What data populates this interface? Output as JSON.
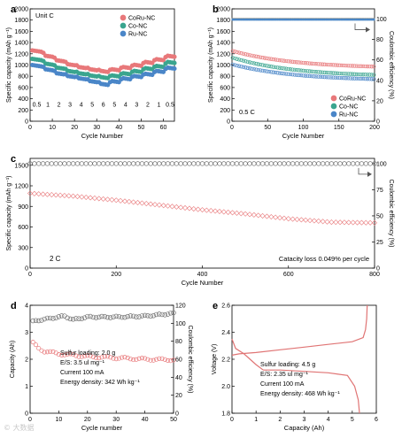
{
  "watermark": "© 大数据",
  "colors": {
    "corunc": "#e8787a",
    "conc": "#3aa58f",
    "runc": "#4a86c8",
    "gray": "#6e6e6e",
    "line": "#e07474"
  },
  "chart_data": [
    {
      "panel": "a",
      "type": "scatter",
      "xlabel": "Cycle Number",
      "ylabel": "Specific capacity (mAh g⁻¹)",
      "xlim": [
        0,
        65
      ],
      "ylim": [
        0,
        2000
      ],
      "xticks": [
        0,
        10,
        20,
        30,
        40,
        50,
        60
      ],
      "yticks": [
        0,
        200,
        400,
        600,
        800,
        1000,
        1200,
        1400,
        1600,
        1800,
        2000
      ],
      "annotation": "Unit C",
      "rate_labels": [
        "0.5",
        "1",
        "2",
        "3",
        "4",
        "5",
        "6",
        "5",
        "4",
        "3",
        "2",
        "1",
        "0.5"
      ],
      "legend_position": "top-right",
      "series": [
        {
          "name": "CoRu-NC",
          "color": "#e8787a",
          "segments": [
            1260,
            1170,
            1090,
            1020,
            970,
            930,
            900,
            930,
            970,
            1010,
            1060,
            1110,
            1170
          ]
        },
        {
          "name": "Co-NC",
          "color": "#3aa58f",
          "segments": [
            1110,
            1030,
            960,
            900,
            860,
            820,
            790,
            820,
            860,
            900,
            950,
            990,
            1060
          ]
        },
        {
          "name": "Ru-NC",
          "color": "#4a86c8",
          "segments": [
            1000,
            930,
            860,
            810,
            770,
            720,
            670,
            720,
            770,
            810,
            850,
            900,
            960
          ]
        }
      ]
    },
    {
      "panel": "b",
      "type": "scatter",
      "xlabel": "Cycle Number",
      "ylabel": "Specific capacity (mAh g⁻¹)",
      "ylabel_right": "Coulombic efficiency (%)",
      "xlim": [
        0,
        200
      ],
      "ylim": [
        0,
        2000
      ],
      "ylim_right": [
        0,
        110
      ],
      "xticks": [
        0,
        50,
        100,
        150,
        200
      ],
      "yticks": [
        0,
        200,
        400,
        600,
        800,
        1000,
        1200,
        1400,
        1600,
        1800,
        2000
      ],
      "yticks_right": [
        0,
        20,
        40,
        60,
        80,
        100
      ],
      "annotation": "0.5 C",
      "legend_position": "bottom-right",
      "series": [
        {
          "name": "CoRu-NC",
          "color": "#e8787a",
          "start": 1250,
          "end": 940,
          "ce": 100
        },
        {
          "name": "Co-NC",
          "color": "#3aa58f",
          "start": 1130,
          "end": 790,
          "ce": 100
        },
        {
          "name": "Ru-NC",
          "color": "#4a86c8",
          "start": 1010,
          "end": 720,
          "ce": 100
        }
      ]
    },
    {
      "panel": "c",
      "type": "scatter",
      "xlabel": "Cycle Number",
      "ylabel": "Specific capacity (mAh g⁻¹)",
      "ylabel_right": "Coulombic efficiency (%)",
      "xlim": [
        0,
        800
      ],
      "ylim": [
        0,
        1600
      ],
      "ylim_right": [
        0,
        105
      ],
      "xticks": [
        0,
        200,
        400,
        600,
        800
      ],
      "yticks": [
        0,
        300,
        600,
        900,
        1200,
        1500
      ],
      "yticks_right": [
        0,
        25,
        50,
        75,
        100
      ],
      "annotation": "2 C",
      "note": "Catacity loss 0.049% per cycle",
      "series": [
        {
          "name": "capacity",
          "color": "#e8787a",
          "points": [
            [
              0,
              1090
            ],
            [
              100,
              1050
            ],
            [
              200,
              990
            ],
            [
              300,
              920
            ],
            [
              400,
              850
            ],
            [
              500,
              790
            ],
            [
              600,
              720
            ],
            [
              700,
              670
            ],
            [
              800,
              660
            ]
          ]
        },
        {
          "name": "coulombic efficiency",
          "color": "#6e6e6e",
          "ce": 100
        }
      ]
    },
    {
      "panel": "d",
      "type": "scatter",
      "xlabel": "Cycle number",
      "ylabel": "Capacity (Ah)",
      "ylabel_right": "Coulombic efficiency (%)",
      "xlim": [
        0,
        50
      ],
      "ylim": [
        0,
        4
      ],
      "ylim_right": [
        0,
        120
      ],
      "xticks": [
        0,
        10,
        20,
        30,
        40,
        50
      ],
      "yticks": [
        0,
        1,
        2,
        3,
        4
      ],
      "yticks_right": [
        0,
        20,
        40,
        60,
        80,
        100,
        120
      ],
      "info": [
        "Sulfur loading: 2.0 g",
        "E/S: 3.5 ul mg⁻¹",
        "Current 100 mA",
        "Energy density: 342 Wh kg⁻¹"
      ],
      "series": [
        {
          "name": "capacity",
          "color": "#e8787a",
          "points": [
            [
              1,
              2.6
            ],
            [
              3,
              2.4
            ],
            [
              5,
              2.3
            ],
            [
              10,
              2.2
            ],
            [
              15,
              2.15
            ],
            [
              20,
              2.1
            ],
            [
              30,
              2.05
            ],
            [
              40,
              2.0
            ],
            [
              50,
              1.98
            ]
          ]
        },
        {
          "name": "coulombic efficiency",
          "color": "#6e6e6e",
          "points": [
            [
              1,
              102
            ],
            [
              4,
              104
            ],
            [
              8,
              106
            ],
            [
              12,
              108
            ],
            [
              15,
              104
            ],
            [
              20,
              107
            ],
            [
              30,
              107
            ],
            [
              40,
              108
            ],
            [
              50,
              111
            ]
          ]
        }
      ]
    },
    {
      "panel": "e",
      "type": "line",
      "xlabel": "Capacity (Ah)",
      "ylabel": "Voltage (V)",
      "xlim": [
        0,
        6
      ],
      "ylim": [
        1.8,
        2.6
      ],
      "xticks": [
        0,
        1,
        2,
        3,
        4,
        5,
        6
      ],
      "yticks": [
        1.8,
        2.0,
        2.2,
        2.4,
        2.6
      ],
      "info": [
        "Sulfur loading: 4.5 g",
        "E/S: 2.35 ul mg⁻¹",
        "Current 100 mA",
        "Energy density: 468 Wh kg⁻¹"
      ],
      "series": [
        {
          "name": "discharge",
          "color": "#e07474",
          "points": [
            [
              0,
              2.35
            ],
            [
              0.15,
              2.28
            ],
            [
              0.5,
              2.24
            ],
            [
              1.0,
              2.16
            ],
            [
              1.3,
              2.12
            ],
            [
              2.0,
              2.12
            ],
            [
              3.0,
              2.11
            ],
            [
              4.0,
              2.1
            ],
            [
              4.8,
              2.08
            ],
            [
              5.1,
              2.0
            ],
            [
              5.25,
              1.9
            ],
            [
              5.3,
              1.8
            ]
          ]
        },
        {
          "name": "charge",
          "color": "#e07474",
          "points": [
            [
              0,
              2.23
            ],
            [
              0.3,
              2.24
            ],
            [
              1.0,
              2.25
            ],
            [
              2.0,
              2.27
            ],
            [
              3.0,
              2.29
            ],
            [
              4.0,
              2.31
            ],
            [
              5.0,
              2.33
            ],
            [
              5.45,
              2.36
            ],
            [
              5.55,
              2.42
            ],
            [
              5.6,
              2.5
            ],
            [
              5.62,
              2.6
            ]
          ]
        }
      ]
    }
  ]
}
